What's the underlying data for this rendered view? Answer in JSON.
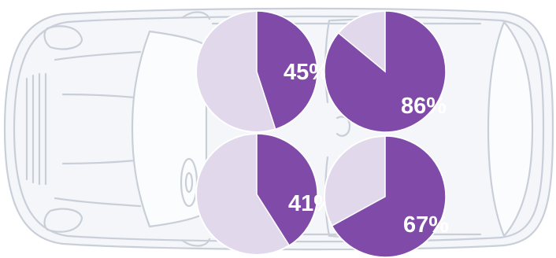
{
  "chart_data": {
    "type": "pie",
    "charts": [
      {
        "value": 45,
        "label": "45%"
      },
      {
        "value": 86,
        "label": "86%"
      },
      {
        "value": 41,
        "label": "41%"
      },
      {
        "value": 67,
        "label": "67%"
      }
    ]
  },
  "colors": {
    "filled": "#7f4aa8",
    "remainder": "#e1d8ec",
    "car_outline": "#c9cfd8",
    "car_fill": "#f4f6f9"
  },
  "background_graphic": "car-top-view"
}
